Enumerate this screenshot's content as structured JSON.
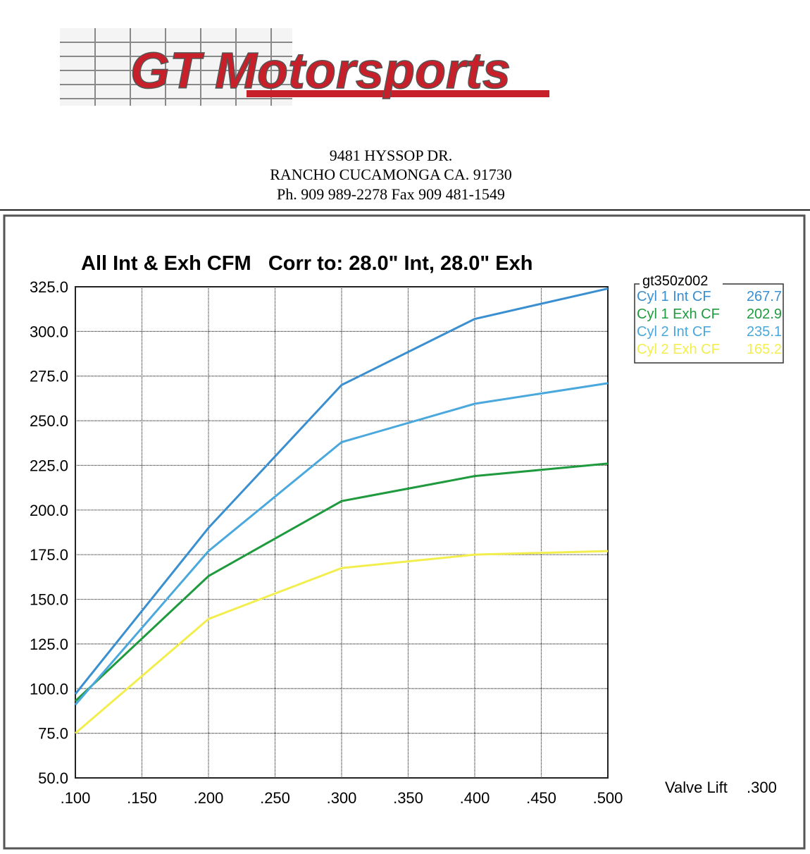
{
  "header": {
    "logo": "GT Motorsports",
    "address": [
      "9481 HYSSOP DR.",
      "RANCHO CUCAMONGA CA. 91730",
      "Ph. 909 989-2278 Fax 909 481-1549"
    ]
  },
  "chart_data": {
    "type": "line",
    "title": "All Int & Exh CFM   Corr to: 28.0\" Int, 28.0\" Exh",
    "x": [
      0.1,
      0.2,
      0.3,
      0.4,
      0.5
    ],
    "legend_title": "gt350z002",
    "series": [
      {
        "name": "Cyl 1 Int CF",
        "legend_value": "267.7",
        "color": "#3a8fd0",
        "values": [
          97,
          190,
          270,
          307,
          324
        ]
      },
      {
        "name": "Cyl 1 Exh CF",
        "legend_value": "202.9",
        "color": "#1f9a3e",
        "values": [
          93,
          163,
          205,
          219,
          226
        ]
      },
      {
        "name": "Cyl 2 Int CF",
        "legend_value": "235.1",
        "color": "#4aa8dd",
        "values": [
          91,
          177,
          238,
          259.5,
          271
        ]
      },
      {
        "name": "Cyl 2 Exh CF",
        "legend_value": "165.2",
        "color": "#f2ee4e",
        "values": [
          75,
          139,
          167.5,
          175,
          177
        ]
      }
    ],
    "xlim": [
      0.1,
      0.5
    ],
    "xticks": [
      {
        "value": 0.1,
        "label": ".100"
      },
      {
        "value": 0.15,
        "label": ".150"
      },
      {
        "value": 0.2,
        "label": ".200"
      },
      {
        "value": 0.25,
        "label": ".250"
      },
      {
        "value": 0.3,
        "label": ".300"
      },
      {
        "value": 0.35,
        "label": ".350"
      },
      {
        "value": 0.4,
        "label": ".400"
      },
      {
        "value": 0.45,
        "label": ".450"
      },
      {
        "value": 0.5,
        "label": ".500"
      }
    ],
    "ylim": [
      50,
      325
    ],
    "yticks": [
      {
        "value": 50,
        "label": "50.0"
      },
      {
        "value": 75,
        "label": "75.0"
      },
      {
        "value": 100,
        "label": "100.0"
      },
      {
        "value": 125,
        "label": "125.0"
      },
      {
        "value": 150,
        "label": "150.0"
      },
      {
        "value": 175,
        "label": "175.0"
      },
      {
        "value": 200,
        "label": "200.0"
      },
      {
        "value": 225,
        "label": "225.0"
      },
      {
        "value": 250,
        "label": "250.0"
      },
      {
        "value": 275,
        "label": "275.0"
      },
      {
        "value": 300,
        "label": "300.0"
      },
      {
        "value": 325,
        "label": "325.0"
      }
    ],
    "cursor_label": "Valve Lift",
    "cursor_value": ".300",
    "grid": true
  }
}
